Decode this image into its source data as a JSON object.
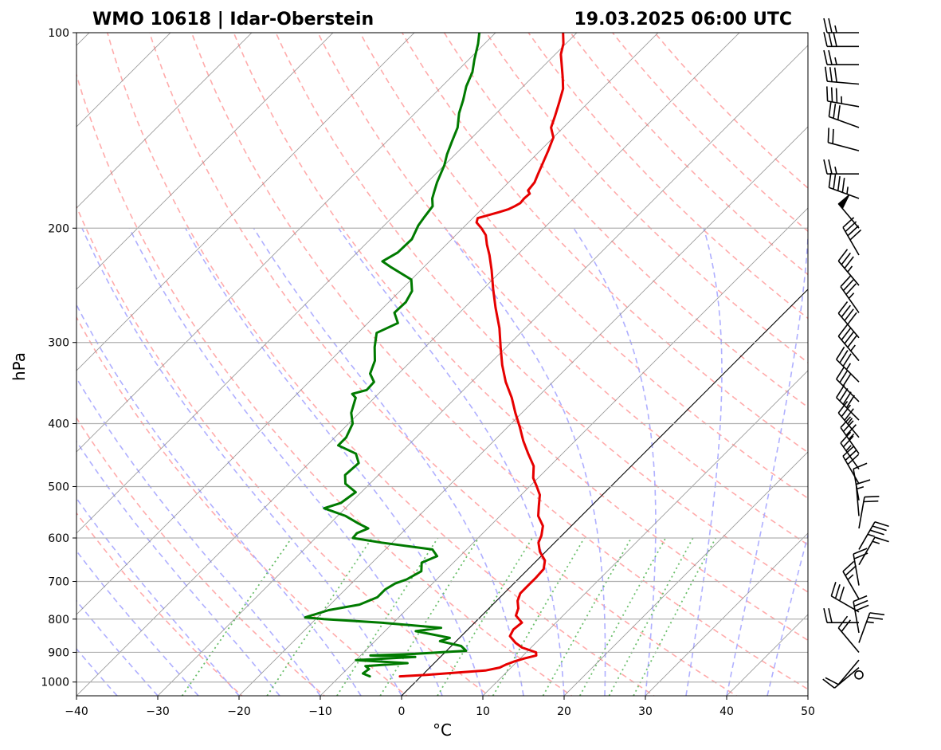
{
  "chart_data": {
    "type": "line",
    "subtype": "skew-t log-p diagram",
    "title_left": "WMO 10618 | Idar-Oberstein",
    "title_right": "19.03.2025 06:00 UTC",
    "xlabel": "°C",
    "ylabel": "hPa",
    "xlim": [
      -40,
      50
    ],
    "ylim": [
      1050,
      100
    ],
    "y_scale": "log",
    "x_ticks": [
      -40,
      -30,
      -20,
      -10,
      0,
      10,
      20,
      30,
      40,
      50
    ],
    "x_tick_labels": [
      "−40",
      "−30",
      "−20",
      "−10",
      "0",
      "10",
      "20",
      "30",
      "40",
      "50"
    ],
    "y_ticks": [
      1000,
      900,
      800,
      700,
      600,
      500,
      400,
      300,
      200,
      100
    ],
    "y_tick_labels": [
      "1000",
      "900",
      "800",
      "700",
      "600",
      "500",
      "400",
      "300",
      "200",
      "100"
    ],
    "grid": true,
    "colors": {
      "temperature": "#e60000",
      "dewpoint": "#007a00",
      "dry_adiabat": "#ff9c9c",
      "moist_adiabat": "#a6a6ff",
      "mixing_ratio": "#5cb85c",
      "isotherm": "#8a8a8a",
      "reference_isotherm": "#000000",
      "gridline": "#b0b0b0"
    },
    "series": [
      {
        "role": "temperature",
        "points": [
          [
            -2.6,
            980
          ],
          [
            0.5,
            975
          ],
          [
            3.5,
            968
          ],
          [
            7.2,
            960
          ],
          [
            8.6,
            950
          ],
          [
            9.0,
            940
          ],
          [
            9.6,
            930
          ],
          [
            10.5,
            920
          ],
          [
            11.6,
            910
          ],
          [
            11.2,
            900
          ],
          [
            8.9,
            885
          ],
          [
            7.5,
            870
          ],
          [
            6.0,
            850
          ],
          [
            5.6,
            830
          ],
          [
            5.8,
            810
          ],
          [
            4.2,
            790
          ],
          [
            3.6,
            770
          ],
          [
            2.6,
            750
          ],
          [
            2.0,
            730
          ],
          [
            2.0,
            710
          ],
          [
            2.0,
            690
          ],
          [
            1.9,
            670
          ],
          [
            1.0,
            650
          ],
          [
            -0.7,
            630
          ],
          [
            -2.0,
            610
          ],
          [
            -2.5,
            595
          ],
          [
            -3.5,
            575
          ],
          [
            -5.3,
            555
          ],
          [
            -6.5,
            535
          ],
          [
            -7.7,
            515
          ],
          [
            -9.1,
            500
          ],
          [
            -10.6,
            485
          ],
          [
            -12.0,
            465
          ],
          [
            -14.2,
            445
          ],
          [
            -16.4,
            425
          ],
          [
            -18.5,
            405
          ],
          [
            -20.8,
            385
          ],
          [
            -23.1,
            365
          ],
          [
            -25.8,
            345
          ],
          [
            -28.3,
            325
          ],
          [
            -30.7,
            305
          ],
          [
            -33.2,
            285
          ],
          [
            -36.2,
            265
          ],
          [
            -38.8,
            248
          ],
          [
            -41.3,
            232
          ],
          [
            -43.4,
            220
          ],
          [
            -45.0,
            212
          ],
          [
            -46.3,
            205
          ],
          [
            -47.7,
            200
          ],
          [
            -49.0,
            196
          ],
          [
            -49.4,
            193
          ],
          [
            -47.5,
            189
          ],
          [
            -46.7,
            187
          ],
          [
            -46.3,
            185
          ],
          [
            -46.0,
            183
          ],
          [
            -46.1,
            180
          ],
          [
            -46.0,
            177
          ],
          [
            -46.6,
            175
          ],
          [
            -46.8,
            170
          ],
          [
            -47.4,
            165
          ],
          [
            -48.0,
            160
          ],
          [
            -49.0,
            152
          ],
          [
            -50.0,
            145
          ],
          [
            -51.5,
            140
          ],
          [
            -52.5,
            134
          ],
          [
            -53.6,
            128
          ],
          [
            -54.8,
            122
          ],
          [
            -56.3,
            117
          ],
          [
            -57.6,
            113
          ],
          [
            -59.3,
            108
          ],
          [
            -60.3,
            104
          ],
          [
            -61.7,
            100
          ]
        ]
      },
      {
        "role": "dewpoint",
        "points": [
          [
            -6.3,
            980
          ],
          [
            -7.5,
            970
          ],
          [
            -7.3,
            955
          ],
          [
            -8.1,
            945
          ],
          [
            -3.3,
            935
          ],
          [
            -10.0,
            925
          ],
          [
            -3.1,
            915
          ],
          [
            -8.8,
            910
          ],
          [
            -3.5,
            905
          ],
          [
            2.4,
            895
          ],
          [
            1.2,
            880
          ],
          [
            -2.0,
            865
          ],
          [
            -1.2,
            855
          ],
          [
            -6.2,
            835
          ],
          [
            -3.5,
            825
          ],
          [
            -11.5,
            810
          ],
          [
            -19.0,
            800
          ],
          [
            -21.5,
            795
          ],
          [
            -19.5,
            775
          ],
          [
            -16.4,
            760
          ],
          [
            -15.1,
            740
          ],
          [
            -15.1,
            720
          ],
          [
            -14.6,
            705
          ],
          [
            -13.7,
            695
          ],
          [
            -12.9,
            675
          ],
          [
            -13.9,
            655
          ],
          [
            -12.8,
            640
          ],
          [
            -14.2,
            625
          ],
          [
            -21.3,
            610
          ],
          [
            -25.4,
            600
          ],
          [
            -25.5,
            590
          ],
          [
            -24.7,
            580
          ],
          [
            -26.5,
            570
          ],
          [
            -29.0,
            555
          ],
          [
            -32.6,
            540
          ],
          [
            -31.2,
            530
          ],
          [
            -30.7,
            510
          ],
          [
            -33.0,
            495
          ],
          [
            -34.1,
            480
          ],
          [
            -33.9,
            460
          ],
          [
            -35.4,
            445
          ],
          [
            -38.6,
            432
          ],
          [
            -38.6,
            420
          ],
          [
            -39.5,
            400
          ],
          [
            -41.0,
            385
          ],
          [
            -42.3,
            365
          ],
          [
            -43.2,
            360
          ],
          [
            -41.9,
            355
          ],
          [
            -42.0,
            345
          ],
          [
            -43.5,
            335
          ],
          [
            -44.5,
            320
          ],
          [
            -46.2,
            305
          ],
          [
            -47.7,
            290
          ],
          [
            -46.3,
            280
          ],
          [
            -48.0,
            270
          ],
          [
            -47.9,
            260
          ],
          [
            -48.5,
            250
          ],
          [
            -50.0,
            240
          ],
          [
            -53.9,
            230
          ],
          [
            -55.8,
            225
          ],
          [
            -55.0,
            218
          ],
          [
            -54.9,
            208
          ],
          [
            -55.8,
            198
          ],
          [
            -56.1,
            192
          ],
          [
            -56.4,
            185
          ],
          [
            -57.4,
            180
          ],
          [
            -58.1,
            175
          ],
          [
            -58.8,
            170
          ],
          [
            -60.0,
            160
          ],
          [
            -61.0,
            154
          ],
          [
            -62.0,
            147
          ],
          [
            -63.0,
            140
          ],
          [
            -64.6,
            133
          ],
          [
            -65.7,
            127
          ],
          [
            -67.0,
            121
          ],
          [
            -68.0,
            115
          ],
          [
            -69.3,
            110
          ],
          [
            -70.8,
            104
          ],
          [
            -72.0,
            100
          ]
        ]
      }
    ],
    "reference_isotherm_c": 0,
    "isotherms_c": [
      -120,
      -110,
      -100,
      -90,
      -80,
      -70,
      -60,
      -50,
      -40,
      -30,
      -20,
      -10,
      10,
      20,
      30,
      40,
      50
    ],
    "dry_adiabats_k": [
      250,
      260,
      270,
      280,
      290,
      300,
      310,
      320,
      330,
      340,
      350,
      360,
      370,
      380,
      390,
      400,
      410,
      420,
      430
    ],
    "moist_adiabats_sfc_c": [
      -35,
      -30,
      -25,
      -20,
      -15,
      -10,
      -5,
      0,
      5,
      10,
      15,
      20,
      25,
      30,
      35,
      40,
      45
    ],
    "mixing_ratios_gkg": [
      0.4,
      1,
      2,
      3,
      5,
      8,
      12,
      16,
      20,
      24
    ],
    "wind_barbs": [
      {
        "p": 975,
        "spd": 0,
        "dir": 0
      },
      {
        "p": 950,
        "spd": 10,
        "dir": 230
      },
      {
        "p": 925,
        "spd": 10,
        "dir": 220
      },
      {
        "p": 900,
        "spd": 20,
        "dir": 320
      },
      {
        "p": 870,
        "spd": 25,
        "dir": 20
      },
      {
        "p": 840,
        "spd": 30,
        "dir": 350
      },
      {
        "p": 810,
        "spd": 20,
        "dir": 270
      },
      {
        "p": 780,
        "spd": 30,
        "dir": 300
      },
      {
        "p": 745,
        "spd": 25,
        "dir": 330
      },
      {
        "p": 710,
        "spd": 20,
        "dir": 350
      },
      {
        "p": 660,
        "spd": 15,
        "dir": 30
      },
      {
        "p": 625,
        "spd": 35,
        "dir": 30
      },
      {
        "p": 580,
        "spd": 20,
        "dir": 10
      },
      {
        "p": 555,
        "spd": 15,
        "dir": 355
      },
      {
        "p": 525,
        "spd": 10,
        "dir": 350
      },
      {
        "p": 495,
        "spd": 30,
        "dir": 330
      },
      {
        "p": 470,
        "spd": 25,
        "dir": 325
      },
      {
        "p": 445,
        "spd": 35,
        "dir": 325
      },
      {
        "p": 420,
        "spd": 35,
        "dir": 320
      },
      {
        "p": 395,
        "spd": 40,
        "dir": 315
      },
      {
        "p": 370,
        "spd": 30,
        "dir": 315
      },
      {
        "p": 345,
        "spd": 35,
        "dir": 315
      },
      {
        "p": 320,
        "spd": 45,
        "dir": 320
      },
      {
        "p": 295,
        "spd": 40,
        "dir": 320
      },
      {
        "p": 270,
        "spd": 35,
        "dir": 325
      },
      {
        "p": 245,
        "spd": 35,
        "dir": 320
      },
      {
        "p": 220,
        "spd": 40,
        "dir": 330
      },
      {
        "p": 200,
        "spd": 50,
        "dir": 320
      },
      {
        "p": 180,
        "spd": 45,
        "dir": 290
      },
      {
        "p": 165,
        "spd": 25,
        "dir": 270
      },
      {
        "p": 152,
        "spd": 20,
        "dir": 285
      },
      {
        "p": 140,
        "spd": 30,
        "dir": 290
      },
      {
        "p": 130,
        "spd": 35,
        "dir": 280
      },
      {
        "p": 120,
        "spd": 30,
        "dir": 275
      },
      {
        "p": 112,
        "spd": 25,
        "dir": 270
      },
      {
        "p": 105,
        "spd": 30,
        "dir": 270
      },
      {
        "p": 100,
        "spd": 25,
        "dir": 270
      }
    ]
  }
}
